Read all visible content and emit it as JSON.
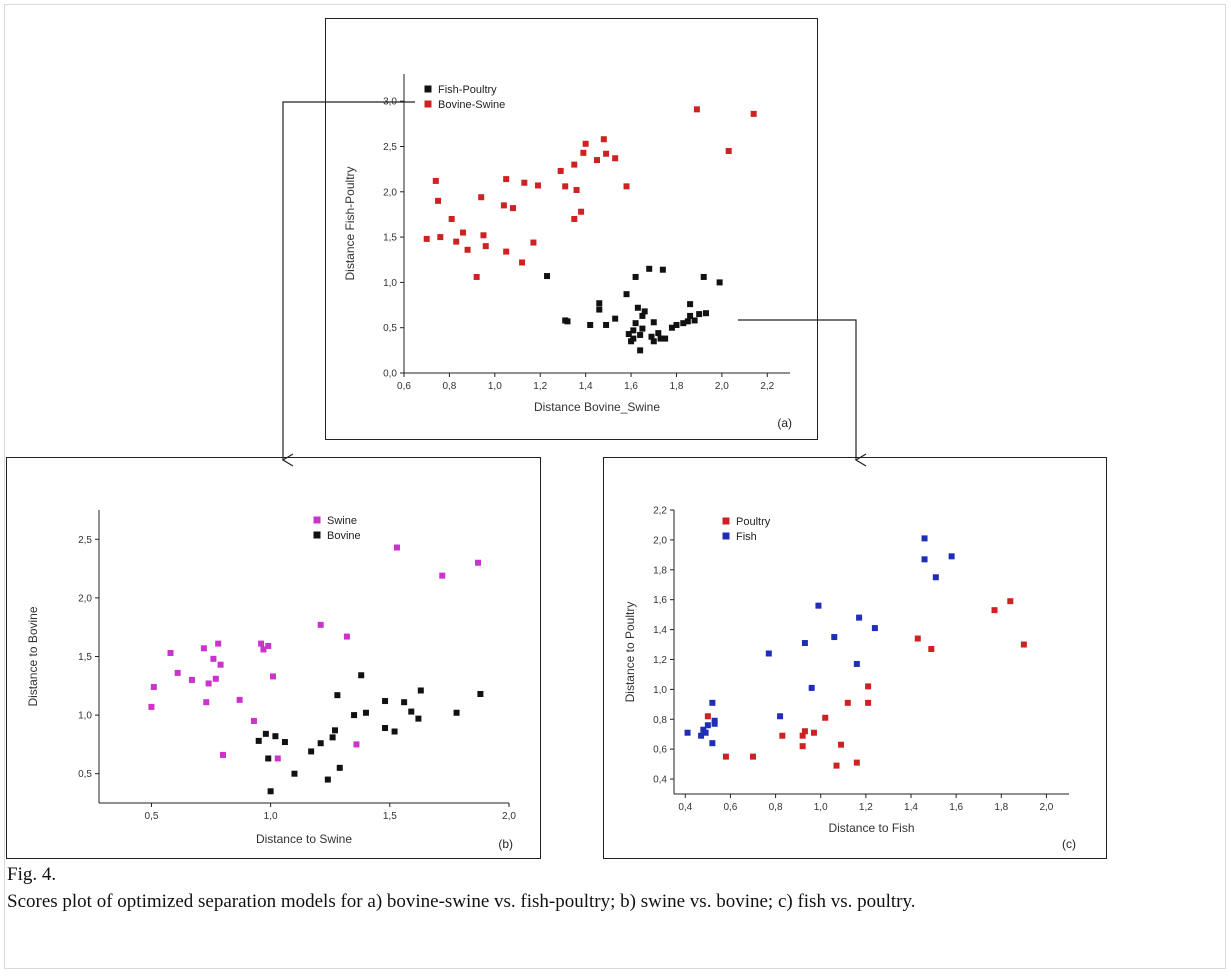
{
  "figure": {
    "label": "Fig. 4.",
    "caption": "Scores plot of optimized separation models for a) bovine-swine vs. fish-poultry; b) swine vs. bovine; c) fish vs. poultry."
  },
  "colors": {
    "red": "#cc2222",
    "black": "#111111",
    "magenta": "#cc33cc",
    "blue": "#1f2db8"
  },
  "chart_data": [
    {
      "id": "a",
      "type": "scatter",
      "panel_label": "(a)",
      "xlabel": "Distance Bovine_Swine",
      "ylabel": "Distance Fish-Poultry",
      "xlim": [
        0.6,
        2.3
      ],
      "ylim": [
        0.0,
        3.3
      ],
      "xticks": [
        "0,6",
        "0,8",
        "1,0",
        "1,2",
        "1,4",
        "1,6",
        "1,8",
        "2,0",
        "2,2"
      ],
      "yticks": [
        "0,0",
        "0,5",
        "1,0",
        "1,5",
        "2,0",
        "2,5",
        "3,0"
      ],
      "legend_position": "top-left",
      "series": [
        {
          "name": "Fish-Poultry",
          "color": "#111111",
          "points": [
            [
              1.23,
              1.07
            ],
            [
              1.31,
              0.58
            ],
            [
              1.32,
              0.57
            ],
            [
              1.42,
              0.53
            ],
            [
              1.46,
              0.77
            ],
            [
              1.46,
              0.7
            ],
            [
              1.49,
              0.53
            ],
            [
              1.53,
              0.6
            ],
            [
              1.58,
              0.87
            ],
            [
              1.59,
              0.43
            ],
            [
              1.6,
              0.35
            ],
            [
              1.61,
              0.47
            ],
            [
              1.61,
              0.38
            ],
            [
              1.62,
              0.55
            ],
            [
              1.62,
              1.06
            ],
            [
              1.63,
              0.72
            ],
            [
              1.64,
              0.25
            ],
            [
              1.64,
              0.42
            ],
            [
              1.65,
              0.63
            ],
            [
              1.65,
              0.49
            ],
            [
              1.66,
              0.68
            ],
            [
              1.68,
              1.15
            ],
            [
              1.69,
              0.4
            ],
            [
              1.7,
              0.35
            ],
            [
              1.7,
              0.56
            ],
            [
              1.72,
              0.44
            ],
            [
              1.73,
              0.38
            ],
            [
              1.74,
              1.14
            ],
            [
              1.75,
              0.38
            ],
            [
              1.78,
              0.5
            ],
            [
              1.8,
              0.53
            ],
            [
              1.83,
              0.55
            ],
            [
              1.85,
              0.57
            ],
            [
              1.86,
              0.63
            ],
            [
              1.86,
              0.76
            ],
            [
              1.88,
              0.58
            ],
            [
              1.9,
              0.65
            ],
            [
              1.92,
              1.06
            ],
            [
              1.93,
              0.66
            ],
            [
              1.99,
              1.0
            ]
          ]
        },
        {
          "name": "Bovine-Swine",
          "color": "#cc2222",
          "points": [
            [
              0.7,
              1.48
            ],
            [
              0.74,
              2.12
            ],
            [
              0.75,
              1.9
            ],
            [
              0.76,
              1.5
            ],
            [
              0.81,
              1.7
            ],
            [
              0.83,
              1.45
            ],
            [
              0.86,
              1.55
            ],
            [
              0.88,
              1.36
            ],
            [
              0.92,
              1.06
            ],
            [
              0.94,
              1.94
            ],
            [
              0.95,
              1.52
            ],
            [
              0.96,
              1.4
            ],
            [
              1.04,
              1.85
            ],
            [
              1.05,
              1.34
            ],
            [
              1.05,
              2.14
            ],
            [
              1.08,
              1.82
            ],
            [
              1.12,
              1.22
            ],
            [
              1.13,
              2.1
            ],
            [
              1.17,
              1.44
            ],
            [
              1.19,
              2.07
            ],
            [
              1.29,
              2.23
            ],
            [
              1.31,
              2.06
            ],
            [
              1.35,
              2.3
            ],
            [
              1.35,
              1.7
            ],
            [
              1.36,
              2.02
            ],
            [
              1.38,
              1.78
            ],
            [
              1.39,
              2.43
            ],
            [
              1.4,
              2.53
            ],
            [
              1.45,
              2.35
            ],
            [
              1.48,
              2.58
            ],
            [
              1.49,
              2.42
            ],
            [
              1.53,
              2.37
            ],
            [
              1.58,
              2.06
            ],
            [
              1.89,
              2.91
            ],
            [
              2.03,
              2.45
            ],
            [
              2.14,
              2.86
            ]
          ]
        }
      ]
    },
    {
      "id": "b",
      "type": "scatter",
      "panel_label": "(b)",
      "xlabel": "Distance to Swine",
      "ylabel": "Distance to Bovine",
      "xlim": [
        0.28,
        2.0
      ],
      "ylim": [
        0.25,
        2.75
      ],
      "xticks": [
        "0,5",
        "1,0",
        "1,5",
        "2,0"
      ],
      "yticks": [
        "0,5",
        "1,0",
        "1,5",
        "2,0",
        "2,5"
      ],
      "legend_position": "top-center",
      "series": [
        {
          "name": "Swine",
          "color": "#cc33cc",
          "points": [
            [
              0.5,
              1.07
            ],
            [
              0.51,
              1.24
            ],
            [
              0.58,
              1.53
            ],
            [
              0.61,
              1.36
            ],
            [
              0.67,
              1.3
            ],
            [
              0.72,
              1.57
            ],
            [
              0.73,
              1.11
            ],
            [
              0.74,
              1.27
            ],
            [
              0.76,
              1.48
            ],
            [
              0.77,
              1.31
            ],
            [
              0.78,
              1.61
            ],
            [
              0.79,
              1.43
            ],
            [
              0.8,
              0.66
            ],
            [
              0.87,
              1.13
            ],
            [
              0.93,
              0.95
            ],
            [
              0.96,
              1.61
            ],
            [
              0.97,
              1.56
            ],
            [
              0.99,
              1.59
            ],
            [
              1.01,
              1.33
            ],
            [
              1.03,
              0.63
            ],
            [
              1.21,
              1.77
            ],
            [
              1.32,
              1.67
            ],
            [
              1.36,
              0.75
            ],
            [
              1.53,
              2.43
            ],
            [
              1.72,
              2.19
            ],
            [
              1.87,
              2.3
            ]
          ]
        },
        {
          "name": "Bovine",
          "color": "#111111",
          "points": [
            [
              0.95,
              0.78
            ],
            [
              0.98,
              0.84
            ],
            [
              0.99,
              0.63
            ],
            [
              1.0,
              0.35
            ],
            [
              1.02,
              0.82
            ],
            [
              1.06,
              0.77
            ],
            [
              1.1,
              0.5
            ],
            [
              1.17,
              0.69
            ],
            [
              1.21,
              0.76
            ],
            [
              1.24,
              0.45
            ],
            [
              1.26,
              0.81
            ],
            [
              1.27,
              0.87
            ],
            [
              1.28,
              1.17
            ],
            [
              1.29,
              0.55
            ],
            [
              1.35,
              1.0
            ],
            [
              1.38,
              1.34
            ],
            [
              1.4,
              1.02
            ],
            [
              1.48,
              1.12
            ],
            [
              1.48,
              0.89
            ],
            [
              1.52,
              0.86
            ],
            [
              1.56,
              1.11
            ],
            [
              1.59,
              1.03
            ],
            [
              1.62,
              0.97
            ],
            [
              1.63,
              1.21
            ],
            [
              1.78,
              1.02
            ],
            [
              1.88,
              1.18
            ]
          ]
        }
      ]
    },
    {
      "id": "c",
      "type": "scatter",
      "panel_label": "(c)",
      "xlabel": "Distance to Fish",
      "ylabel": "Distance to Poultry",
      "xlim": [
        0.35,
        2.1
      ],
      "ylim": [
        0.3,
        2.2
      ],
      "xticks": [
        "0,4",
        "0,6",
        "0,8",
        "1,0",
        "1,2",
        "1,4",
        "1,6",
        "1,8",
        "2,0"
      ],
      "yticks": [
        "0,4",
        "0,6",
        "0,8",
        "1,0",
        "1,2",
        "1,4",
        "1,6",
        "1,8",
        "2,0",
        "2,2"
      ],
      "legend_position": "top-left",
      "series": [
        {
          "name": "Poultry",
          "color": "#cc2222",
          "points": [
            [
              0.5,
              0.82
            ],
            [
              0.58,
              0.55
            ],
            [
              0.7,
              0.55
            ],
            [
              0.83,
              0.69
            ],
            [
              0.92,
              0.69
            ],
            [
              0.92,
              0.62
            ],
            [
              0.93,
              0.72
            ],
            [
              0.97,
              0.71
            ],
            [
              1.02,
              0.81
            ],
            [
              1.07,
              0.49
            ],
            [
              1.09,
              0.63
            ],
            [
              1.12,
              0.91
            ],
            [
              1.16,
              0.51
            ],
            [
              1.21,
              1.02
            ],
            [
              1.21,
              0.91
            ],
            [
              1.43,
              1.34
            ],
            [
              1.49,
              1.27
            ],
            [
              1.77,
              1.53
            ],
            [
              1.84,
              1.59
            ],
            [
              1.9,
              1.3
            ]
          ]
        },
        {
          "name": "Fish",
          "color": "#1f2db8",
          "points": [
            [
              0.41,
              0.71
            ],
            [
              0.47,
              0.69
            ],
            [
              0.48,
              0.73
            ],
            [
              0.49,
              0.71
            ],
            [
              0.5,
              0.76
            ],
            [
              0.52,
              0.91
            ],
            [
              0.52,
              0.64
            ],
            [
              0.53,
              0.77
            ],
            [
              0.53,
              0.79
            ],
            [
              0.77,
              1.24
            ],
            [
              0.82,
              0.82
            ],
            [
              0.93,
              1.31
            ],
            [
              0.96,
              1.01
            ],
            [
              0.99,
              1.56
            ],
            [
              1.06,
              1.35
            ],
            [
              1.16,
              1.17
            ],
            [
              1.17,
              1.48
            ],
            [
              1.24,
              1.41
            ],
            [
              1.46,
              2.01
            ],
            [
              1.46,
              1.87
            ],
            [
              1.51,
              1.75
            ],
            [
              1.58,
              1.89
            ]
          ]
        }
      ]
    }
  ]
}
